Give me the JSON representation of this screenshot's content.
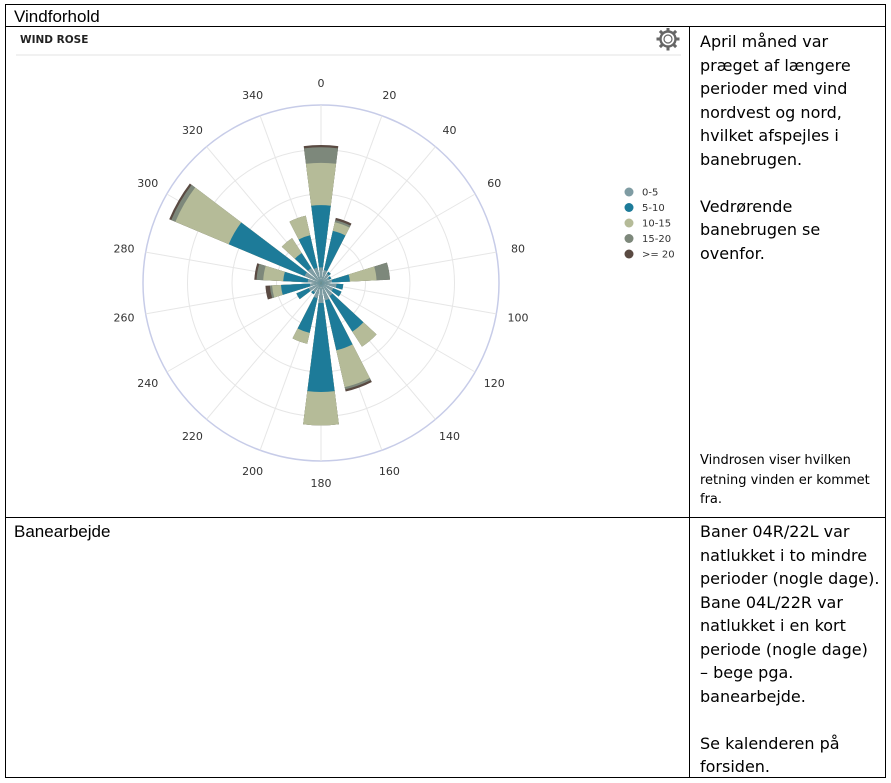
{
  "table": {
    "title": "Vindforhold",
    "row2_title": "Banearbejde",
    "wind_text": [
      "April måned var",
      "præget af længere",
      "perioder med vind",
      "nordvest og nord,",
      "hvilket afspejles i",
      "banebrugen.",
      "",
      "Vedrørende",
      "banebrugen se",
      "ovenfor."
    ],
    "wind_note": [
      "Vindrosen viser hvilken",
      "retning vinden er kommet",
      "fra."
    ],
    "work_text": [
      "Baner 04R/22L var",
      "natlukket i to mindre",
      "perioder (nogle dage).",
      "Bane 04L/22R var",
      "natlukket i en kort",
      "periode (nogle dage)",
      "– bege pga.",
      "banearbejde.",
      "",
      "Se kalenderen på",
      "forsiden."
    ]
  },
  "widget": {
    "title": "WIND ROSE",
    "settings_icon": "gear-icon"
  },
  "chart_data": {
    "type": "wind-rose",
    "title": "WIND ROSE",
    "angle_labels": [
      "0",
      "20",
      "40",
      "60",
      "80",
      "100",
      "120",
      "140",
      "160",
      "180",
      "200",
      "220",
      "240",
      "260",
      "280",
      "300",
      "320",
      "340"
    ],
    "radial_max": 4,
    "grid": true,
    "legend_position": "right",
    "bins": [
      {
        "name": "0-5",
        "color": "#7f9ca3"
      },
      {
        "name": "5-10",
        "color": "#1d7b99"
      },
      {
        "name": "10-15",
        "color": "#b5bb98"
      },
      {
        "name": "15-20",
        "color": "#7d887b"
      },
      {
        "name": ">= 20",
        "color": "#5a4a42"
      }
    ],
    "directions": [
      {
        "dir": 0,
        "values": [
          0.35,
          1.75,
          2.7,
          3.05,
          3.1
        ]
      },
      {
        "dir": 20,
        "values": [
          0.3,
          1.2,
          1.4,
          1.45,
          1.5
        ]
      },
      {
        "dir": 40,
        "values": [
          0.25,
          0.3,
          0.3,
          0.3,
          0.3
        ]
      },
      {
        "dir": 60,
        "values": [
          0.2,
          0.25,
          0.25,
          0.25,
          0.25
        ]
      },
      {
        "dir": 80,
        "values": [
          0.25,
          0.65,
          1.25,
          1.55,
          1.55
        ]
      },
      {
        "dir": 100,
        "values": [
          0.35,
          0.5,
          0.5,
          0.5,
          0.5
        ]
      },
      {
        "dir": 120,
        "values": [
          0.3,
          0.5,
          0.5,
          0.5,
          0.5
        ]
      },
      {
        "dir": 140,
        "values": [
          0.35,
          1.3,
          1.7,
          1.7,
          1.7
        ]
      },
      {
        "dir": 160,
        "values": [
          0.4,
          1.55,
          2.4,
          2.45,
          2.5
        ]
      },
      {
        "dir": 180,
        "values": [
          0.45,
          2.45,
          3.2,
          3.2,
          3.2
        ]
      },
      {
        "dir": 200,
        "values": [
          0.35,
          1.15,
          1.4,
          1.4,
          1.4
        ]
      },
      {
        "dir": 220,
        "values": [
          0.25,
          0.3,
          0.3,
          0.3,
          0.3
        ]
      },
      {
        "dir": 240,
        "values": [
          0.3,
          0.6,
          0.6,
          0.6,
          0.6
        ]
      },
      {
        "dir": 260,
        "values": [
          0.25,
          0.9,
          1.1,
          1.15,
          1.25
        ]
      },
      {
        "dir": 280,
        "values": [
          0.3,
          0.85,
          1.3,
          1.45,
          1.5
        ]
      },
      {
        "dir": 300,
        "values": [
          0.4,
          2.25,
          3.55,
          3.65,
          3.7
        ]
      },
      {
        "dir": 320,
        "values": [
          0.4,
          0.8,
          1.2,
          1.2,
          1.2
        ]
      },
      {
        "dir": 340,
        "values": [
          0.35,
          1.1,
          1.55,
          1.55,
          1.55
        ]
      }
    ]
  }
}
